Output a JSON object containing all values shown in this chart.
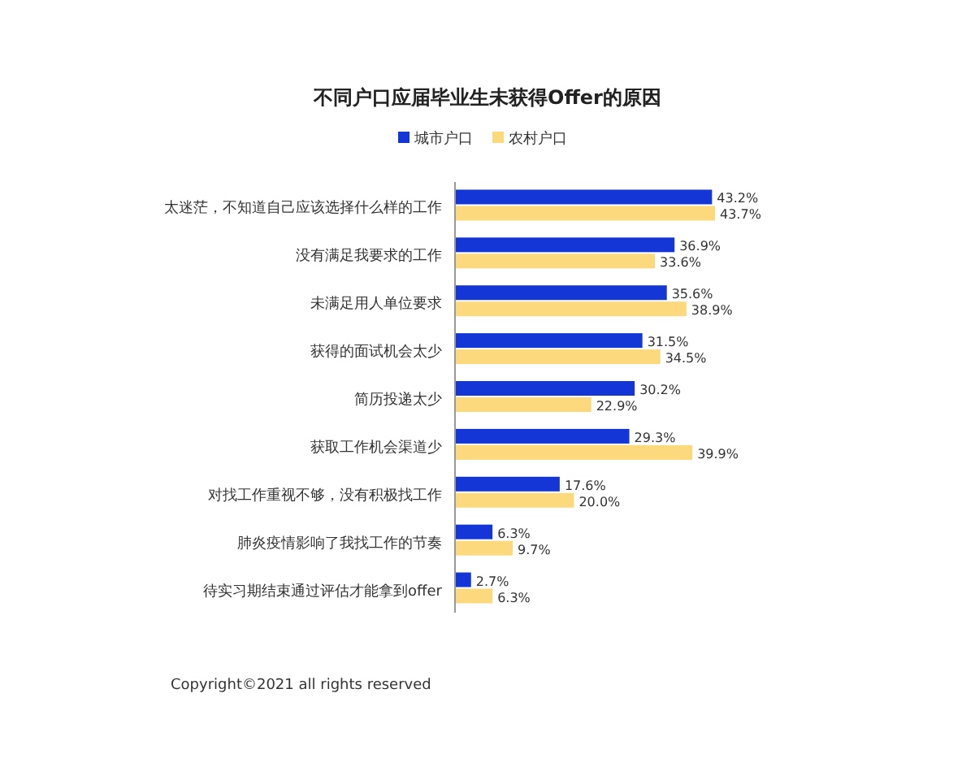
{
  "chart_data": {
    "type": "bar",
    "orientation": "horizontal",
    "title": "不同户口应届毕业生未获得Offer的原因",
    "categories": [
      "太迷茫，不知道自己应该选择什么样的工作",
      "没有满足我要求的工作",
      "未满足用人单位要求",
      "获得的面试机会太少",
      "简历投递太少",
      "获取工作机会渠道少",
      "对找工作重视不够，没有积极找工作",
      "肺炎疫情影响了我找工作的节奏",
      "待实习期结束通过评估才能拿到offer"
    ],
    "series": [
      {
        "name": "城市户口",
        "color": "#1536d6",
        "values": [
          43.2,
          36.9,
          35.6,
          31.5,
          30.2,
          29.3,
          17.6,
          6.3,
          2.7
        ],
        "value_labels": [
          "43.2%",
          "36.9%",
          "35.6%",
          "31.5%",
          "30.2%",
          "29.3%",
          "17.6%",
          "6.3%",
          "2.7%"
        ]
      },
      {
        "name": "农村户口",
        "color": "#fbd97c",
        "values": [
          43.7,
          33.6,
          38.9,
          34.5,
          22.9,
          39.9,
          20.0,
          9.7,
          6.3
        ],
        "value_labels": [
          "43.7%",
          "33.6%",
          "38.9%",
          "34.5%",
          "22.9%",
          "39.9%",
          "20.0%",
          "9.7%",
          "6.3%"
        ]
      }
    ],
    "legend": "top left",
    "annotations": [
      "Copyright©2021 all rights reserved"
    ]
  }
}
